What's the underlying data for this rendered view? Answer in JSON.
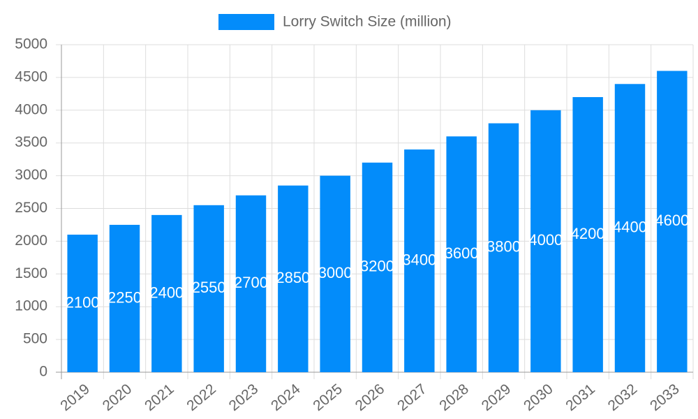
{
  "chart_data": {
    "type": "bar",
    "categories": [
      "2019",
      "2020",
      "2021",
      "2022",
      "2023",
      "2024",
      "2025",
      "2026",
      "2027",
      "2028",
      "2029",
      "2030",
      "2031",
      "2032",
      "2033"
    ],
    "series": [
      {
        "name": "Lorry Switch Size (million)",
        "color": "#038cfa",
        "values": [
          2100,
          2250,
          2400,
          2550,
          2700,
          2850,
          3000,
          3200,
          3400,
          3600,
          3800,
          4000,
          4200,
          4400,
          4600
        ]
      }
    ],
    "ylim": [
      0,
      5000
    ],
    "yticks": [
      0,
      500,
      1000,
      1500,
      2000,
      2500,
      3000,
      3500,
      4000,
      4500,
      5000
    ],
    "grid": true,
    "legend": "top"
  }
}
